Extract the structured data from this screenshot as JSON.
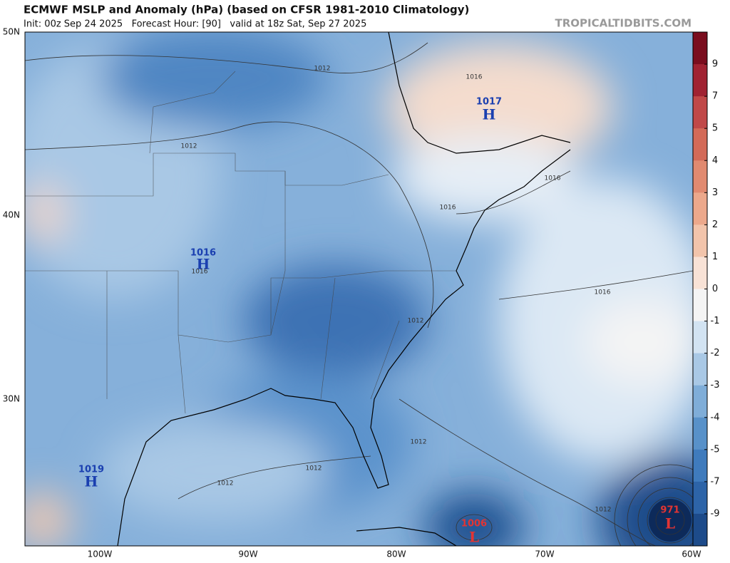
{
  "header": {
    "title": "ECMWF MSLP and Anomaly (hPa) (based on CFSR 1981-2010 Climatology)",
    "subtitle": "Init: 00z Sep 24 2025   Forecast Hour: [90]   valid at 18z Sat, Sep 27 2025",
    "watermark": "TROPICALTIDBITS.COM"
  },
  "axes": {
    "lat_labels": [
      "50N",
      "40N",
      "30N"
    ],
    "lon_labels": [
      "100W",
      "90W",
      "80W",
      "70W",
      "60W"
    ]
  },
  "colorbar": {
    "ticks": [
      9,
      7,
      5,
      4,
      3,
      2,
      1,
      0,
      -1,
      -2,
      -3,
      -4,
      -5,
      -7,
      -9
    ],
    "colors": [
      "#7a0d1e",
      "#a02232",
      "#c04848",
      "#d36a58",
      "#e18a70",
      "#eca88b",
      "#f2c4ab",
      "#f8e2d6",
      "#f4f4f4",
      "#d2e3f2",
      "#a9c8e5",
      "#7fadd8",
      "#5891c9",
      "#3f7bbd",
      "#2d64a8",
      "#1d4b8a"
    ]
  },
  "pressure_centers": [
    {
      "value": "1017",
      "symbol": "H"
    },
    {
      "value": "1016",
      "symbol": "H"
    },
    {
      "value": "1019",
      "symbol": "H"
    },
    {
      "value": "1006",
      "symbol": "L"
    },
    {
      "value": "971",
      "symbol": "L"
    }
  ],
  "contour_labels": [
    "1012",
    "1012",
    "1012",
    "1012",
    "1012",
    "1012",
    "1012",
    "1016",
    "1016",
    "1016",
    "1016",
    "1016"
  ]
}
